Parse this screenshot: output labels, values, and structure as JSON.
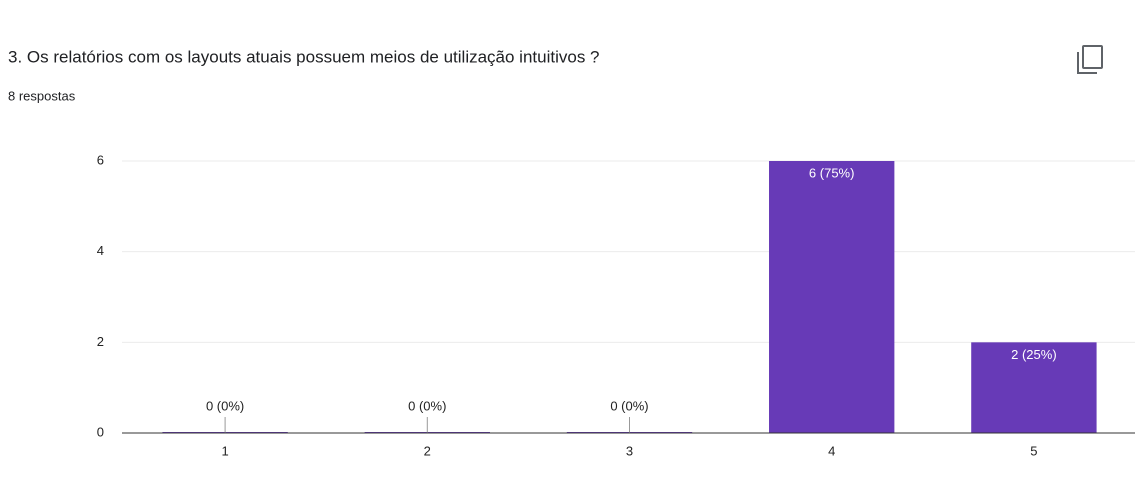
{
  "chart_data": {
    "type": "bar",
    "title": "3. Os relatórios com os layouts atuais possuem meios de utilização intuitivos ?",
    "subtitle": "8 respostas",
    "categories": [
      "1",
      "2",
      "3",
      "4",
      "5"
    ],
    "values": [
      0,
      0,
      0,
      6,
      2
    ],
    "value_labels": [
      "0 (0%)",
      "0 (0%)",
      "0 (0%)",
      "6 (75%)",
      "2 (25%)"
    ],
    "color": "#673ab7",
    "ylim": [
      0,
      6
    ],
    "yticks": [
      0,
      2,
      4,
      6
    ],
    "grid": true
  }
}
